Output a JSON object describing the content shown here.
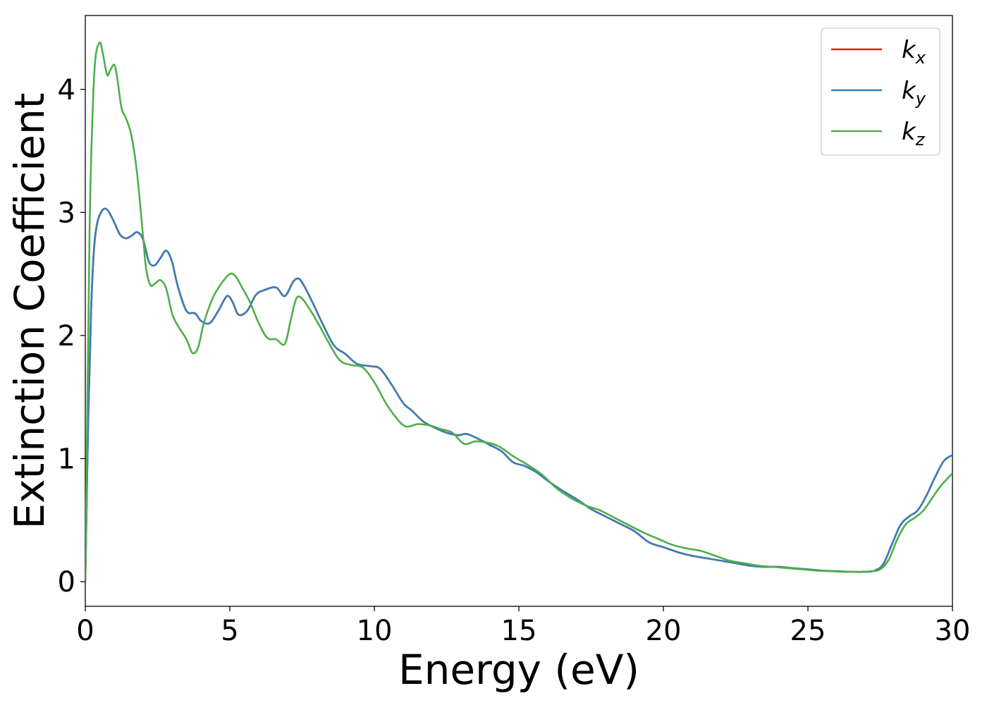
{
  "chart_data": {
    "type": "line",
    "title": "",
    "xlabel": "Energy (eV)",
    "ylabel": "Extinction Coefficient",
    "xlim": [
      0,
      30
    ],
    "ylim": [
      -0.2,
      4.6
    ],
    "xticks": [
      0,
      5,
      10,
      15,
      20,
      25,
      30
    ],
    "yticks": [
      0,
      1,
      2,
      3,
      4
    ],
    "grid": false,
    "legend_position": "top-right",
    "series": [
      {
        "name": "k_x",
        "legend_base": "k",
        "legend_sub": "x",
        "color": "#e41a1c",
        "x": [
          0,
          0.1,
          0.2,
          0.3,
          0.4,
          0.5,
          0.65,
          0.8,
          1.0,
          1.2,
          1.4,
          1.6,
          1.8,
          2.0,
          2.2,
          2.4,
          2.6,
          2.8,
          3.0,
          3.2,
          3.5,
          3.8,
          4.0,
          4.3,
          4.6,
          4.9,
          5.1,
          5.3,
          5.6,
          5.9,
          6.2,
          6.6,
          6.9,
          7.2,
          7.4,
          7.6,
          7.9,
          8.2,
          8.6,
          9.0,
          9.4,
          9.9,
          10.2,
          10.6,
          11.0,
          11.3,
          11.7,
          12.1,
          12.5,
          12.9,
          13.2,
          13.6,
          14.0,
          14.4,
          14.8,
          15.2,
          15.6,
          16.0,
          16.5,
          17.0,
          17.5,
          18.0,
          18.5,
          19.0,
          19.5,
          20.0,
          20.5,
          21.0,
          21.5,
          22.0,
          22.5,
          23.0,
          23.5,
          24.0,
          24.5,
          25.0,
          25.5,
          26.0,
          26.5,
          27.0,
          27.3,
          27.6,
          27.9,
          28.2,
          28.5,
          28.8,
          29.1,
          29.4,
          29.7,
          30.0
        ],
        "y": [
          0.0,
          1.3,
          2.2,
          2.7,
          2.9,
          2.98,
          3.03,
          3.01,
          2.92,
          2.82,
          2.79,
          2.81,
          2.84,
          2.78,
          2.6,
          2.57,
          2.63,
          2.69,
          2.6,
          2.4,
          2.2,
          2.18,
          2.12,
          2.1,
          2.2,
          2.32,
          2.27,
          2.17,
          2.2,
          2.33,
          2.37,
          2.39,
          2.32,
          2.44,
          2.46,
          2.39,
          2.25,
          2.1,
          1.92,
          1.85,
          1.77,
          1.75,
          1.73,
          1.6,
          1.45,
          1.39,
          1.3,
          1.25,
          1.21,
          1.19,
          1.2,
          1.16,
          1.11,
          1.06,
          0.97,
          0.94,
          0.89,
          0.82,
          0.74,
          0.67,
          0.59,
          0.53,
          0.47,
          0.41,
          0.32,
          0.28,
          0.24,
          0.21,
          0.19,
          0.17,
          0.15,
          0.13,
          0.12,
          0.12,
          0.11,
          0.1,
          0.09,
          0.085,
          0.08,
          0.08,
          0.09,
          0.14,
          0.3,
          0.46,
          0.53,
          0.58,
          0.7,
          0.85,
          0.98,
          1.03
        ]
      },
      {
        "name": "k_y",
        "legend_base": "k",
        "legend_sub": "y",
        "color": "#377eb8",
        "x": [
          0,
          0.1,
          0.2,
          0.3,
          0.4,
          0.5,
          0.65,
          0.8,
          1.0,
          1.2,
          1.4,
          1.6,
          1.8,
          2.0,
          2.2,
          2.4,
          2.6,
          2.8,
          3.0,
          3.2,
          3.5,
          3.8,
          4.0,
          4.3,
          4.6,
          4.9,
          5.1,
          5.3,
          5.6,
          5.9,
          6.2,
          6.6,
          6.9,
          7.2,
          7.4,
          7.6,
          7.9,
          8.2,
          8.6,
          9.0,
          9.4,
          9.9,
          10.2,
          10.6,
          11.0,
          11.3,
          11.7,
          12.1,
          12.5,
          12.9,
          13.2,
          13.6,
          14.0,
          14.4,
          14.8,
          15.2,
          15.6,
          16.0,
          16.5,
          17.0,
          17.5,
          18.0,
          18.5,
          19.0,
          19.5,
          20.0,
          20.5,
          21.0,
          21.5,
          22.0,
          22.5,
          23.0,
          23.5,
          24.0,
          24.5,
          25.0,
          25.5,
          26.0,
          26.5,
          27.0,
          27.3,
          27.6,
          27.9,
          28.2,
          28.5,
          28.8,
          29.1,
          29.4,
          29.7,
          30.0
        ],
        "y": [
          0.0,
          1.3,
          2.2,
          2.7,
          2.9,
          2.98,
          3.03,
          3.01,
          2.92,
          2.82,
          2.79,
          2.81,
          2.84,
          2.78,
          2.6,
          2.57,
          2.63,
          2.69,
          2.6,
          2.4,
          2.2,
          2.18,
          2.12,
          2.1,
          2.2,
          2.32,
          2.27,
          2.17,
          2.2,
          2.33,
          2.37,
          2.39,
          2.32,
          2.44,
          2.46,
          2.39,
          2.25,
          2.1,
          1.92,
          1.85,
          1.77,
          1.75,
          1.73,
          1.6,
          1.45,
          1.39,
          1.3,
          1.25,
          1.21,
          1.19,
          1.2,
          1.16,
          1.11,
          1.06,
          0.97,
          0.94,
          0.89,
          0.82,
          0.74,
          0.67,
          0.59,
          0.53,
          0.47,
          0.41,
          0.32,
          0.28,
          0.24,
          0.21,
          0.19,
          0.17,
          0.15,
          0.13,
          0.12,
          0.12,
          0.11,
          0.1,
          0.09,
          0.085,
          0.08,
          0.08,
          0.09,
          0.14,
          0.3,
          0.46,
          0.53,
          0.58,
          0.7,
          0.85,
          0.98,
          1.03
        ]
      },
      {
        "name": "k_z",
        "legend_base": "k",
        "legend_sub": "z",
        "color": "#4daf4a",
        "x": [
          0,
          0.08,
          0.15,
          0.25,
          0.35,
          0.5,
          0.6,
          0.75,
          0.85,
          1.0,
          1.1,
          1.25,
          1.4,
          1.6,
          1.8,
          2.0,
          2.1,
          2.25,
          2.4,
          2.6,
          2.8,
          3.0,
          3.2,
          3.5,
          3.7,
          3.9,
          4.1,
          4.4,
          4.7,
          5.0,
          5.2,
          5.4,
          5.7,
          6.0,
          6.3,
          6.6,
          6.9,
          7.1,
          7.3,
          7.5,
          7.8,
          8.1,
          8.4,
          8.8,
          9.2,
          9.6,
          10.0,
          10.4,
          10.8,
          11.1,
          11.5,
          11.9,
          12.3,
          12.7,
          13.1,
          13.5,
          13.9,
          14.3,
          14.8,
          15.3,
          15.8,
          16.3,
          16.8,
          17.3,
          17.8,
          18.3,
          18.8,
          19.3,
          19.8,
          20.3,
          20.8,
          21.3,
          21.8,
          22.3,
          22.8,
          23.3,
          23.8,
          24.3,
          24.8,
          25.3,
          25.8,
          26.3,
          26.8,
          27.2,
          27.5,
          27.8,
          28.1,
          28.4,
          28.7,
          29.0,
          29.3,
          29.6,
          30.0
        ],
        "y": [
          0.0,
          1.6,
          2.9,
          3.8,
          4.25,
          4.38,
          4.3,
          4.12,
          4.15,
          4.2,
          4.1,
          3.85,
          3.77,
          3.62,
          3.3,
          2.8,
          2.55,
          2.41,
          2.42,
          2.45,
          2.38,
          2.18,
          2.08,
          1.97,
          1.86,
          1.9,
          2.1,
          2.3,
          2.42,
          2.5,
          2.48,
          2.4,
          2.27,
          2.1,
          1.98,
          1.97,
          1.93,
          2.12,
          2.3,
          2.3,
          2.2,
          2.08,
          1.95,
          1.8,
          1.76,
          1.74,
          1.62,
          1.45,
          1.32,
          1.26,
          1.28,
          1.27,
          1.24,
          1.21,
          1.12,
          1.14,
          1.13,
          1.1,
          1.02,
          0.95,
          0.87,
          0.76,
          0.68,
          0.62,
          0.58,
          0.52,
          0.46,
          0.4,
          0.35,
          0.3,
          0.27,
          0.25,
          0.21,
          0.17,
          0.15,
          0.13,
          0.12,
          0.11,
          0.1,
          0.09,
          0.085,
          0.08,
          0.08,
          0.085,
          0.1,
          0.18,
          0.35,
          0.47,
          0.52,
          0.58,
          0.68,
          0.78,
          0.88
        ]
      }
    ]
  }
}
